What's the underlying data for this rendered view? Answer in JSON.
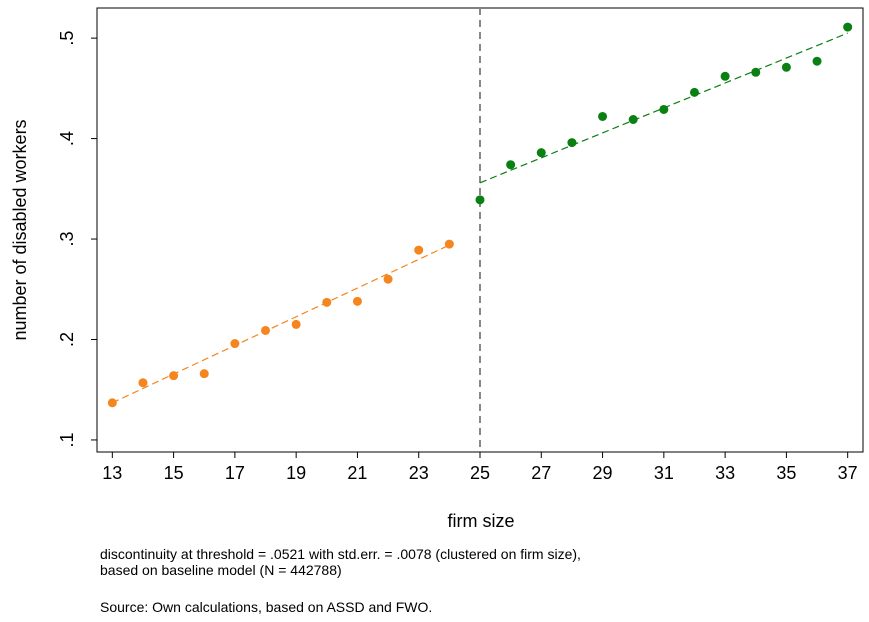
{
  "chart_data": {
    "type": "scatter",
    "xlabel": "firm size",
    "ylabel": "number of disabled workers",
    "xlim": [
      12.5,
      37.5
    ],
    "ylim": [
      0.088,
      0.53
    ],
    "xticks": [
      13,
      15,
      17,
      19,
      21,
      23,
      25,
      27,
      29,
      31,
      33,
      35,
      37
    ],
    "yticks": [
      0.1,
      0.2,
      0.3,
      0.4,
      0.5
    ],
    "ytick_labels": [
      ".1",
      ".2",
      ".3",
      ".4",
      ".5"
    ],
    "threshold": 25,
    "grid": false,
    "series": [
      {
        "color": "#f4851f",
        "x": [
          13,
          14,
          15,
          16,
          17,
          18,
          19,
          20,
          21,
          22,
          23,
          24
        ],
        "y": [
          0.137,
          0.157,
          0.164,
          0.166,
          0.196,
          0.209,
          0.215,
          0.237,
          0.238,
          0.26,
          0.289,
          0.295
        ],
        "fit": {
          "x": [
            13,
            24
          ],
          "y": [
            0.137,
            0.294
          ]
        }
      },
      {
        "color": "#0a7f12",
        "x": [
          25,
          26,
          27,
          28,
          29,
          30,
          31,
          32,
          33,
          34,
          35,
          36,
          37
        ],
        "y": [
          0.339,
          0.374,
          0.386,
          0.396,
          0.422,
          0.419,
          0.429,
          0.446,
          0.462,
          0.466,
          0.471,
          0.477,
          0.511
        ],
        "fit": {
          "x": [
            25,
            37
          ],
          "y": [
            0.356,
            0.505
          ]
        }
      }
    ],
    "notes": [
      "discontinuity at threshold = .0521 with std.err. = .0078 (clustered on firm size),",
      "based on baseline model (N = 442788)",
      "Source: Own calculations, based on ASSD and FWO."
    ]
  }
}
